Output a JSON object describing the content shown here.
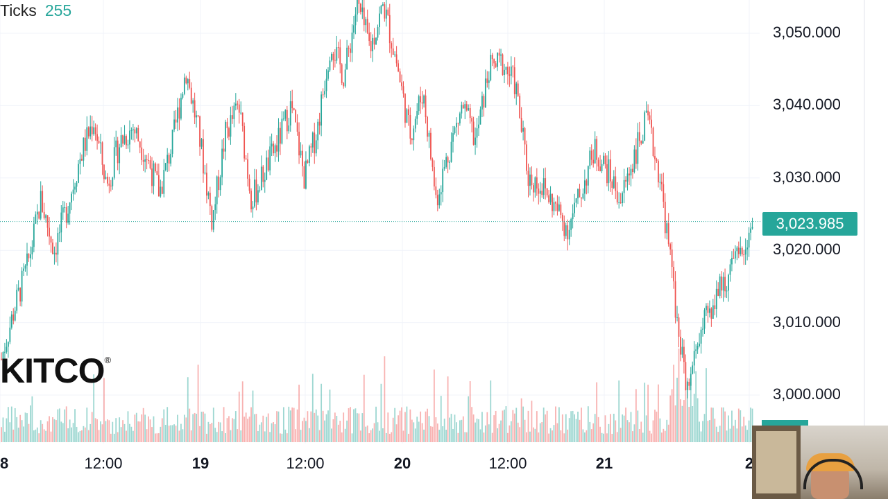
{
  "header": {
    "ticks_label": "Ticks",
    "ticks_value": "255"
  },
  "logo": {
    "text": "KITCO",
    "mark": "®"
  },
  "price": {
    "current": "3,023.985",
    "current_value": 3023.985
  },
  "colors": {
    "up": "#26a69a",
    "down": "#ef5350",
    "grid": "#f0f3fa"
  },
  "webcam": {
    "icon": "webcam-feed-icon"
  },
  "chart_data": {
    "type": "candlestick",
    "yaxis": {
      "ticks": [
        {
          "value": 3050,
          "label": "3,050.000"
        },
        {
          "value": 3040,
          "label": "3,040.000"
        },
        {
          "value": 3030,
          "label": "3,030.000"
        },
        {
          "value": 3020,
          "label": "3,020.000"
        },
        {
          "value": 3010,
          "label": "3,010.000"
        },
        {
          "value": 3000,
          "label": "3,000.000"
        }
      ],
      "range": [
        2997,
        3055
      ]
    },
    "xaxis": {
      "ticks": [
        {
          "label": "8",
          "bold": true
        },
        {
          "label": "12:00",
          "bold": false
        },
        {
          "label": "19",
          "bold": true
        },
        {
          "label": "12:00",
          "bold": false
        },
        {
          "label": "20",
          "bold": true
        },
        {
          "label": "12:00",
          "bold": false
        },
        {
          "label": "21",
          "bold": true
        },
        {
          "label": "2",
          "bold": true
        }
      ]
    },
    "price_path": [
      3005,
      3012,
      3018,
      3027,
      3020,
      3026,
      3033,
      3038,
      3029,
      3035,
      3037,
      3033,
      3028,
      3035,
      3045,
      3036,
      3024,
      3036,
      3040,
      3027,
      3031,
      3035,
      3040,
      3030,
      3037,
      3049,
      3044,
      3054,
      3048,
      3054,
      3046,
      3036,
      3042,
      3027,
      3034,
      3040,
      3035,
      3045,
      3046,
      3043,
      3030,
      3029,
      3026,
      3023,
      3028,
      3034,
      3031,
      3027,
      3033,
      3038,
      3030,
      3015,
      3000,
      3008,
      3013,
      3016,
      3019,
      3023.985
    ]
  }
}
